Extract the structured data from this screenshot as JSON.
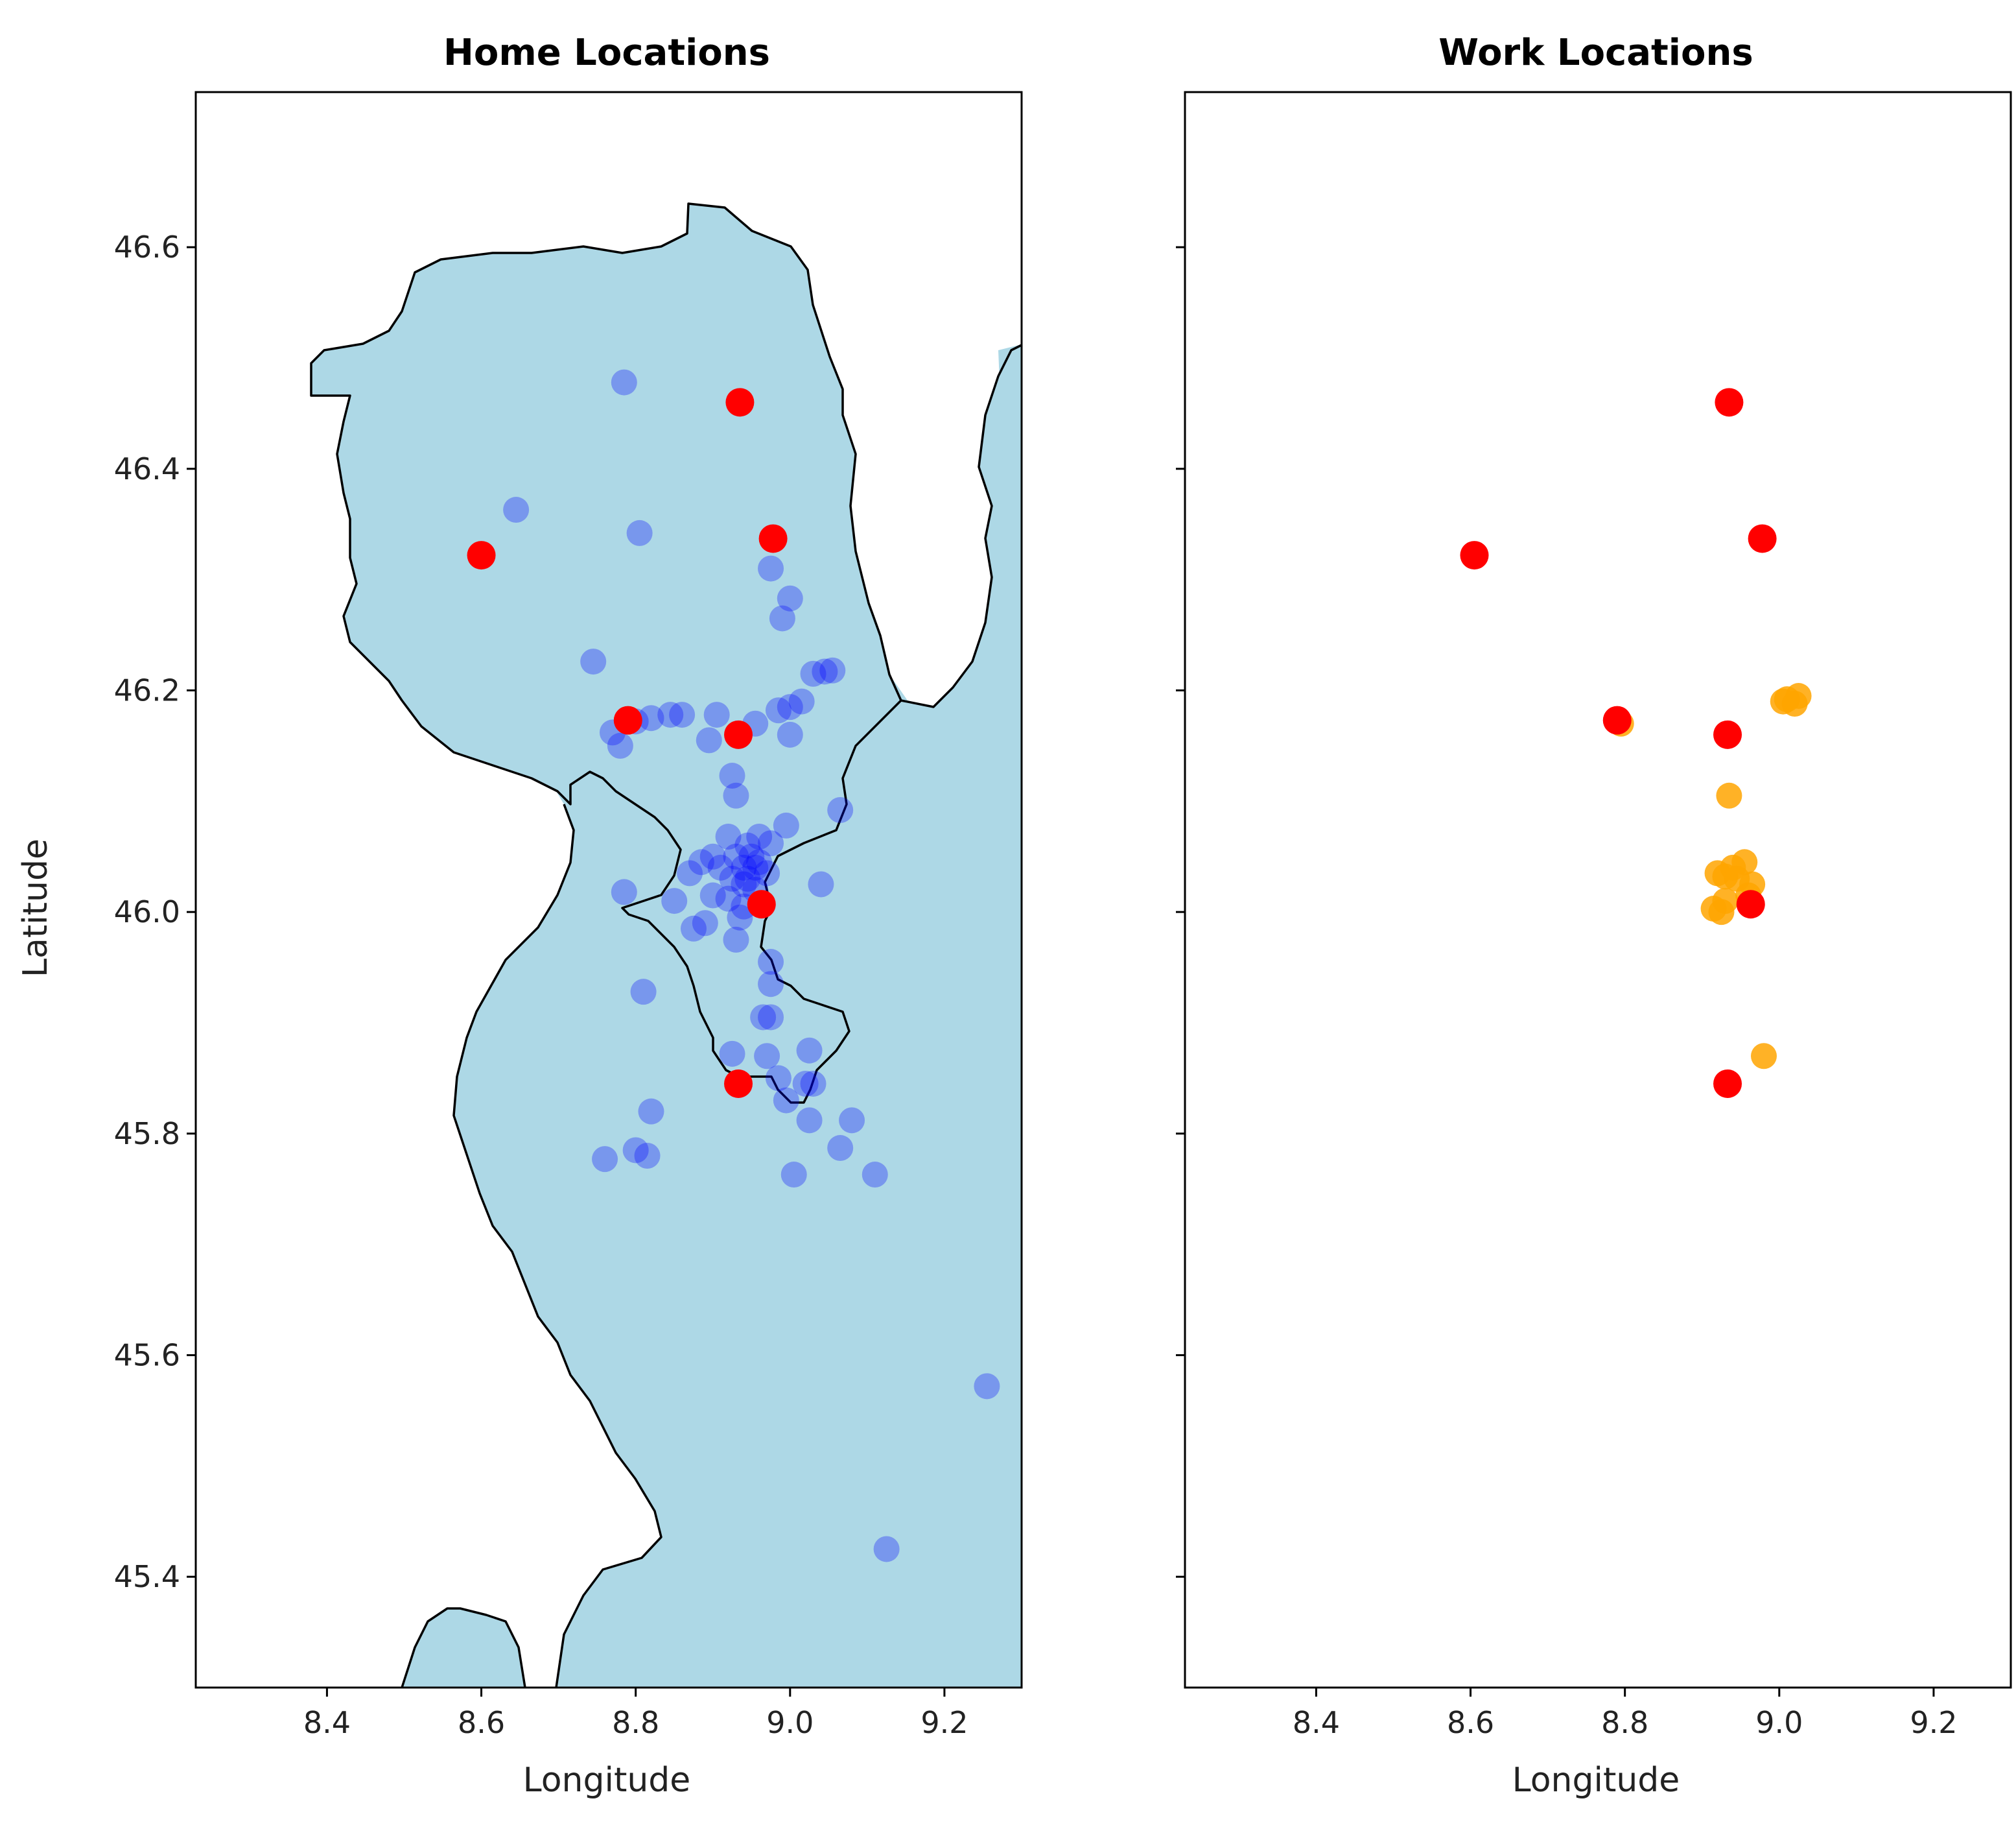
{
  "chart_data": [
    {
      "type": "scatter",
      "title": "Home Locations",
      "xlabel": "Longitude",
      "ylabel": "Latitude",
      "xlim": [
        8.23,
        9.3
      ],
      "ylim": [
        45.3,
        46.74
      ],
      "xticks": [
        "8.4",
        "8.6",
        "8.8",
        "9.0",
        "9.2"
      ],
      "yticks": [
        "45.4",
        "45.6",
        "45.8",
        "46.0",
        "46.2",
        "46.4",
        "46.6"
      ],
      "series": [
        {
          "color": "#0000ff",
          "opacity": 0.3,
          "points": [
            [
              8.785,
              46.478
            ],
            [
              8.645,
              46.363
            ],
            [
              8.805,
              46.342
            ],
            [
              8.975,
              46.31
            ],
            [
              9.0,
              46.283
            ],
            [
              8.99,
              46.265
            ],
            [
              8.745,
              46.226
            ],
            [
              9.045,
              46.217
            ],
            [
              9.03,
              46.215
            ],
            [
              9.055,
              46.218
            ],
            [
              9.015,
              46.19
            ],
            [
              9.0,
              46.185
            ],
            [
              8.985,
              46.182
            ],
            [
              8.905,
              46.178
            ],
            [
              8.86,
              46.178
            ],
            [
              8.845,
              46.178
            ],
            [
              8.82,
              46.175
            ],
            [
              8.8,
              46.172
            ],
            [
              8.77,
              46.162
            ],
            [
              8.78,
              46.15
            ],
            [
              8.895,
              46.155
            ],
            [
              8.955,
              46.17
            ],
            [
              9.0,
              46.16
            ],
            [
              8.925,
              46.123
            ],
            [
              8.93,
              46.105
            ],
            [
              9.065,
              46.092
            ],
            [
              8.995,
              46.078
            ],
            [
              8.92,
              46.068
            ],
            [
              8.96,
              46.068
            ],
            [
              8.975,
              46.062
            ],
            [
              8.945,
              46.06
            ],
            [
              8.9,
              46.05
            ],
            [
              8.885,
              46.045
            ],
            [
              8.87,
              46.035
            ],
            [
              8.94,
              46.04
            ],
            [
              8.955,
              46.04
            ],
            [
              8.97,
              46.035
            ],
            [
              8.925,
              46.03
            ],
            [
              8.94,
              46.025
            ],
            [
              9.04,
              46.025
            ],
            [
              8.785,
              46.018
            ],
            [
              8.85,
              46.01
            ],
            [
              8.9,
              46.015
            ],
            [
              8.92,
              46.012
            ],
            [
              8.94,
              46.005
            ],
            [
              8.935,
              45.995
            ],
            [
              8.89,
              45.99
            ],
            [
              8.875,
              45.985
            ],
            [
              8.93,
              45.975
            ],
            [
              8.975,
              45.955
            ],
            [
              8.975,
              45.935
            ],
            [
              8.81,
              45.928
            ],
            [
              8.975,
              45.905
            ],
            [
              8.965,
              45.905
            ],
            [
              8.925,
              45.872
            ],
            [
              8.97,
              45.87
            ],
            [
              9.025,
              45.875
            ],
            [
              8.985,
              45.85
            ],
            [
              9.02,
              45.845
            ],
            [
              9.03,
              45.845
            ],
            [
              8.995,
              45.83
            ],
            [
              9.025,
              45.812
            ],
            [
              9.08,
              45.812
            ],
            [
              8.82,
              45.82
            ],
            [
              8.8,
              45.785
            ],
            [
              8.815,
              45.78
            ],
            [
              8.76,
              45.777
            ],
            [
              9.065,
              45.787
            ],
            [
              9.005,
              45.763
            ],
            [
              9.11,
              45.763
            ],
            [
              9.255,
              45.572
            ],
            [
              9.125,
              45.425
            ],
            [
              8.95,
              46.05
            ],
            [
              8.96,
              46.045
            ],
            [
              8.93,
              46.05
            ],
            [
              8.945,
              46.03
            ],
            [
              8.955,
              46.02
            ],
            [
              8.91,
              46.04
            ]
          ]
        },
        {
          "color": "#ff0000",
          "opacity": 1,
          "points": [
            [
              8.935,
              46.46
            ],
            [
              8.6,
              46.322
            ],
            [
              8.978,
              46.337
            ],
            [
              8.79,
              46.173
            ],
            [
              8.933,
              46.16
            ],
            [
              8.963,
              46.007
            ],
            [
              8.933,
              45.845
            ]
          ]
        }
      ]
    },
    {
      "type": "scatter",
      "title": "Work Locations",
      "xlabel": "Longitude",
      "ylabel": "",
      "xlim": [
        8.23,
        9.3
      ],
      "ylim": [
        45.3,
        46.74
      ],
      "xticks": [
        "8.4",
        "8.6",
        "8.8",
        "9.0",
        "9.2"
      ],
      "yticks": [],
      "series": [
        {
          "color": "#ffa500",
          "opacity": 0.85,
          "points": [
            [
              9.005,
              46.19
            ],
            [
              9.02,
              46.188
            ],
            [
              9.025,
              46.195
            ],
            [
              9.01,
              46.192
            ],
            [
              8.795,
              46.17
            ],
            [
              8.935,
              46.105
            ],
            [
              8.92,
              46.035
            ],
            [
              8.93,
              46.032
            ],
            [
              8.94,
              46.04
            ],
            [
              8.955,
              46.045
            ],
            [
              8.945,
              46.03
            ],
            [
              8.965,
              46.025
            ],
            [
              8.96,
              46.015
            ],
            [
              8.915,
              46.003
            ],
            [
              8.925,
              46.0
            ],
            [
              8.93,
              46.01
            ],
            [
              8.98,
              45.87
            ]
          ]
        },
        {
          "color": "#ff0000",
          "opacity": 1,
          "points": [
            [
              8.935,
              46.46
            ],
            [
              8.605,
              46.322
            ],
            [
              8.978,
              46.337
            ],
            [
              8.79,
              46.173
            ],
            [
              8.933,
              46.16
            ],
            [
              8.963,
              46.007
            ],
            [
              8.933,
              45.845
            ]
          ]
        }
      ]
    }
  ]
}
